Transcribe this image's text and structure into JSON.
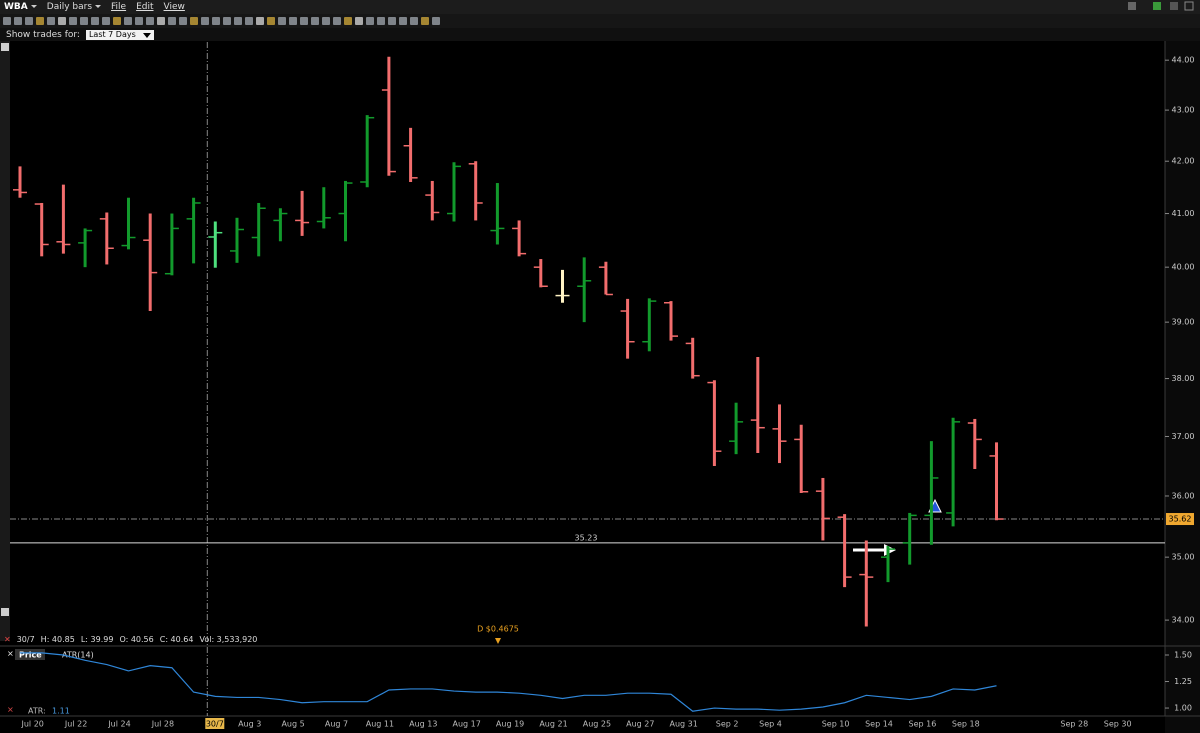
{
  "menu": {
    "symbol": "WBA",
    "bar_period": "Daily bars",
    "items": [
      "File",
      "Edit",
      "View"
    ]
  },
  "filter": {
    "label": "Show trades for:",
    "value": "Last 7 Days"
  },
  "info": {
    "date": "30/7",
    "fields": [
      "H: 40.85",
      "L: 39.99",
      "O: 40.56",
      "C: 40.64",
      "Vol: 3,533,920"
    ]
  },
  "chart_data": [
    {
      "type": "ohlc",
      "log": true,
      "categories": [
        null,
        "Jul 20",
        null,
        "Jul 22",
        null,
        "Jul 24",
        null,
        "Jul 28",
        null,
        "30/7",
        null,
        "Aug 3",
        null,
        "Aug 5",
        null,
        "Aug 7",
        null,
        "Aug 11",
        null,
        "Aug 13",
        null,
        "Aug 17",
        null,
        "Aug 19",
        null,
        "Aug 21",
        null,
        "Aug 25",
        null,
        "Aug 27",
        null,
        "Aug 31",
        null,
        "Sep 2",
        null,
        "Sep 4",
        null,
        null,
        "Sep 10",
        null,
        "Sep 14",
        null,
        "Sep 16",
        null,
        "Sep 18",
        null,
        null,
        null,
        null,
        "Sep 28",
        null,
        "Sep 30"
      ],
      "open": [
        41.45,
        41.18,
        40.47,
        40.45,
        40.9,
        40.4,
        40.5,
        39.88,
        40.9,
        40.56,
        40.3,
        40.55,
        40.87,
        40.87,
        40.85,
        41.0,
        41.6,
        43.4,
        42.3,
        41.35,
        41.0,
        41.95,
        40.68,
        40.72,
        40.0,
        39.48,
        39.65,
        40.0,
        39.2,
        38.65,
        39.35,
        38.62,
        37.93,
        36.92,
        37.28,
        37.13,
        36.95,
        36.08,
        35.65,
        34.72,
        35.0,
        35.23,
        35.68,
        35.72,
        37.23,
        36.67,
        null,
        null,
        null,
        null,
        null,
        null
      ],
      "high": [
        41.9,
        41.2,
        41.55,
        40.72,
        41.02,
        41.3,
        41.0,
        41.0,
        41.3,
        40.85,
        40.92,
        41.2,
        41.1,
        41.43,
        41.5,
        41.62,
        42.9,
        44.07,
        42.65,
        41.62,
        41.98,
        42.0,
        41.58,
        40.87,
        40.15,
        39.95,
        40.18,
        40.1,
        39.42,
        39.43,
        39.38,
        38.72,
        37.97,
        37.58,
        38.38,
        37.55,
        37.2,
        36.3,
        35.7,
        35.27,
        35.18,
        35.72,
        36.92,
        37.32,
        37.3,
        36.9,
        null,
        null,
        null,
        null,
        null,
        null
      ],
      "low": [
        41.3,
        40.2,
        40.25,
        40.0,
        40.05,
        40.33,
        39.2,
        39.85,
        40.07,
        39.99,
        40.08,
        40.2,
        40.48,
        40.58,
        40.72,
        40.48,
        41.5,
        41.72,
        41.6,
        40.87,
        40.85,
        40.87,
        40.42,
        40.2,
        39.63,
        39.35,
        39.0,
        39.5,
        38.35,
        38.48,
        38.67,
        38.0,
        36.5,
        36.7,
        36.72,
        36.55,
        36.05,
        35.27,
        34.52,
        33.9,
        34.6,
        34.88,
        35.2,
        35.5,
        36.45,
        35.6,
        null,
        null,
        null,
        null,
        null,
        null
      ],
      "close": [
        41.4,
        40.42,
        40.42,
        40.68,
        40.35,
        40.55,
        39.9,
        40.72,
        41.2,
        40.64,
        40.7,
        41.1,
        41.0,
        40.83,
        40.92,
        41.58,
        42.85,
        41.8,
        41.68,
        41.02,
        41.9,
        41.2,
        40.72,
        40.25,
        39.65,
        39.48,
        39.75,
        39.5,
        38.65,
        39.38,
        38.75,
        38.05,
        36.75,
        37.25,
        37.15,
        36.92,
        36.07,
        35.63,
        34.68,
        34.68,
        35.13,
        35.68,
        36.3,
        37.25,
        36.95,
        35.62,
        null,
        null,
        null,
        null,
        null,
        null
      ],
      "colors": [
        "#f26d6d",
        "#f26d6d",
        "#f26d6d",
        "#129a2c",
        "#f26d6d",
        "#129a2c",
        "#f26d6d",
        "#129a2c",
        "#129a2c",
        "#4ee07e",
        "#129a2c",
        "#129a2c",
        "#129a2c",
        "#f26d6d",
        "#129a2c",
        "#129a2c",
        "#129a2c",
        "#f26d6d",
        "#f26d6d",
        "#f26d6d",
        "#129a2c",
        "#f26d6d",
        "#129a2c",
        "#f26d6d",
        "#f26d6d",
        "#fff3c4",
        "#129a2c",
        "#f26d6d",
        "#f26d6d",
        "#129a2c",
        "#f26d6d",
        "#f26d6d",
        "#f26d6d",
        "#129a2c",
        "#f26d6d",
        "#f26d6d",
        "#f26d6d",
        "#f26d6d",
        "#f26d6d",
        "#f26d6d",
        "#129a2c",
        "#129a2c",
        "#129a2c",
        "#129a2c",
        "#f26d6d",
        "#f26d6d",
        null,
        null,
        null,
        null,
        null,
        null
      ],
      "ylim": [
        33.69,
        44.37
      ],
      "yticks": [
        {
          "value": 34,
          "label": "34.00"
        },
        {
          "value": 35,
          "label": "35.00"
        },
        {
          "value": 36,
          "label": "36.00"
        },
        {
          "value": 37,
          "label": "37.00"
        },
        {
          "value": 38,
          "label": "38.00"
        },
        {
          "value": 39,
          "label": "39.00"
        },
        {
          "value": 40,
          "label": "40.00"
        },
        {
          "value": 41,
          "label": "41.00"
        },
        {
          "value": 42,
          "label": "42.00"
        },
        {
          "value": 43,
          "label": "43.00"
        },
        {
          "value": 44,
          "label": "44.00"
        }
      ],
      "reference_line": {
        "value": 35.23,
        "label": "35.23"
      },
      "last_price": {
        "value": 35.62,
        "label": "35.62",
        "color": "#f0a830"
      },
      "annotation": "D $0.4675"
    },
    {
      "type": "line",
      "tab": "Price",
      "name": "ATR(14)",
      "color": "#2f86d8",
      "values": [
        1.52,
        1.52,
        1.5,
        1.45,
        1.41,
        1.35,
        1.4,
        1.38,
        1.15,
        1.11,
        1.1,
        1.1,
        1.08,
        1.05,
        1.06,
        1.06,
        1.06,
        1.17,
        1.18,
        1.18,
        1.16,
        1.15,
        1.15,
        1.14,
        1.12,
        1.09,
        1.12,
        1.12,
        1.14,
        1.14,
        1.13,
        0.97,
        1.0,
        0.99,
        0.99,
        0.98,
        0.99,
        1.01,
        1.05,
        1.12,
        1.1,
        1.08,
        1.11,
        1.18,
        1.17,
        1.21,
        null,
        null,
        null,
        null,
        null,
        null
      ],
      "ylim": [
        0.925,
        1.566
      ],
      "yticks": [
        {
          "value": 1.0,
          "label": "1.00"
        },
        {
          "value": 1.25,
          "label": "1.25"
        },
        {
          "value": 1.5,
          "label": "1.50"
        }
      ],
      "readout_label": "ATR:",
      "readout_value": "1.11"
    }
  ]
}
